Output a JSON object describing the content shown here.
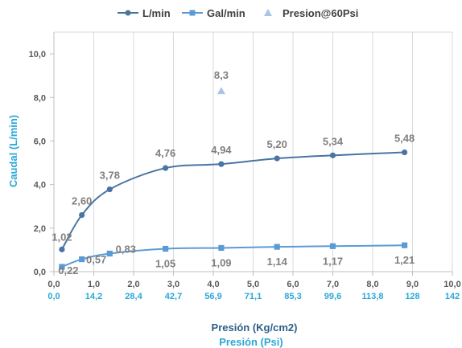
{
  "chart_data": {
    "type": "line",
    "title": "",
    "legend": {
      "placement": "top",
      "entries": [
        {
          "name": "L/min",
          "color": "#4a74a2",
          "marker": "circle"
        },
        {
          "name": "Gal/min",
          "color": "#5b9bd5",
          "marker": "square"
        },
        {
          "name": "Presion@60Psi",
          "color": "#a9c4e4",
          "marker": "triangle"
        }
      ]
    },
    "xlabel": "Presión (Kg/cm2)",
    "xlabel2": "Presión (Psi)",
    "ylabel": "Caudal (L/min)",
    "xlim": [
      0,
      10
    ],
    "ylim": [
      0,
      11
    ],
    "x_ticks": [
      "0,0",
      "1,0",
      "2,0",
      "3,0",
      "4,0",
      "5,0",
      "6,0",
      "7,0",
      "8,0",
      "9,0",
      "10,0"
    ],
    "x2_ticks": [
      "0,0",
      "14,2",
      "28,4",
      "42,7",
      "56,9",
      "71,1",
      "85,3",
      "99,6",
      "113,8",
      "128",
      "142"
    ],
    "y_ticks": [
      "0,0",
      "2,0",
      "4,0",
      "6,0",
      "8,0",
      "10,0"
    ],
    "grid": {
      "vertical": true,
      "horizontal": false
    },
    "series": [
      {
        "name": "L/min",
        "color": "#4a74a2",
        "x": [
          0.2,
          0.7,
          1.4,
          2.8,
          4.2,
          5.6,
          7.0,
          8.8
        ],
        "values": [
          1.02,
          2.6,
          3.78,
          4.76,
          4.94,
          5.2,
          5.34,
          5.48
        ],
        "labels": [
          "1,02",
          "2,60",
          "3,78",
          "4,76",
          "4,94",
          "5,20",
          "5,34",
          "5,48"
        ]
      },
      {
        "name": "Gal/min",
        "color": "#5b9bd5",
        "x": [
          0.2,
          0.7,
          1.4,
          2.8,
          4.2,
          5.6,
          7.0,
          8.8
        ],
        "values": [
          0.22,
          0.57,
          0.83,
          1.05,
          1.09,
          1.14,
          1.17,
          1.21
        ],
        "labels": [
          "0,22",
          "0,57",
          "0,83",
          "1,05",
          "1,09",
          "1,14",
          "1,17",
          "1,21"
        ]
      },
      {
        "name": "Presion@60Psi",
        "color": "#a9c4e4",
        "x": [
          4.2
        ],
        "values": [
          8.3
        ],
        "labels": [
          "8,3"
        ]
      }
    ]
  }
}
